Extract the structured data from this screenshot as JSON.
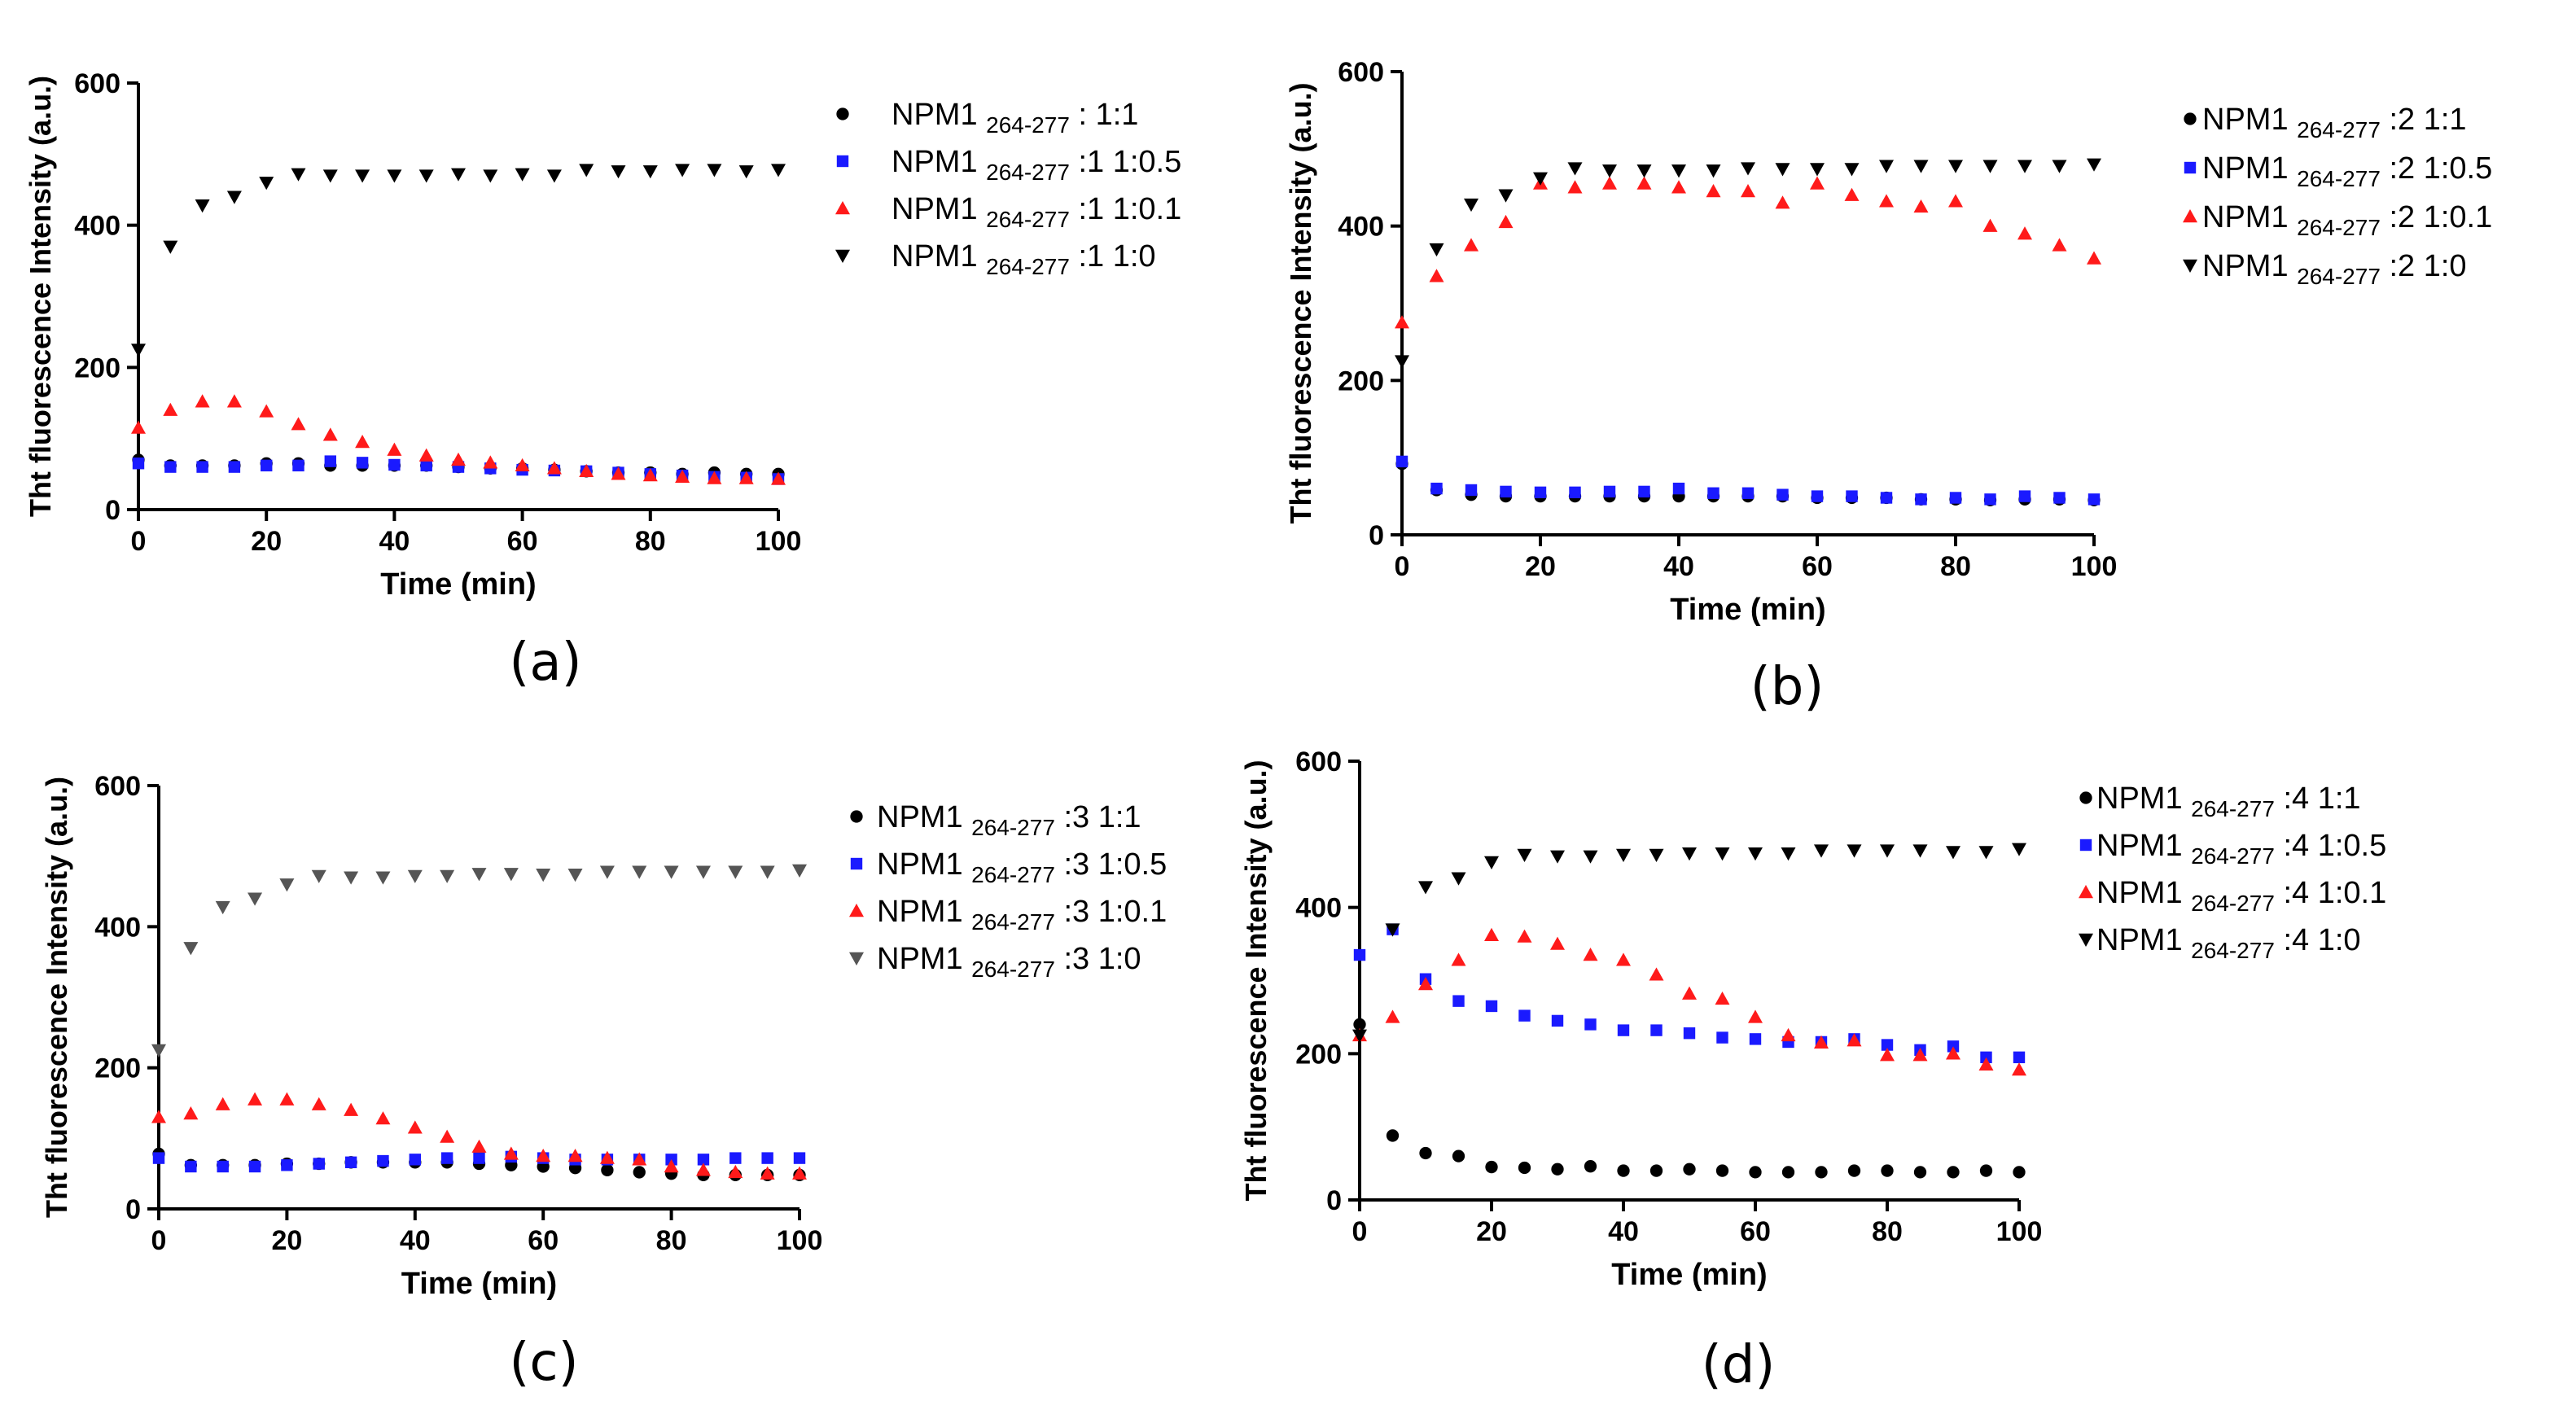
{
  "figure": {
    "colors": {
      "black": "#000000",
      "blue": "#1a1aff",
      "red": "#ff1a1a",
      "gray": "#555555"
    }
  },
  "chart_data": [
    {
      "type": "scatter",
      "panel_label": "(a)",
      "xlabel": "Time (min)",
      "ylabel": "Tht fluorescence Intensity (a.u.)",
      "xlim": [
        0,
        100
      ],
      "ylim": [
        0,
        600
      ],
      "xticks": [
        0,
        20,
        40,
        60,
        80,
        100
      ],
      "yticks": [
        0,
        200,
        400,
        600
      ],
      "x": [
        0,
        5,
        10,
        15,
        20,
        25,
        30,
        35,
        40,
        45,
        50,
        55,
        60,
        65,
        70,
        75,
        80,
        85,
        90,
        95,
        100
      ],
      "series": [
        {
          "name": "1:1",
          "legend": {
            "main": "NPM1",
            "sub": "264-277",
            "suffix": " : 1:1"
          },
          "marker": "circle",
          "color": "#000000",
          "values": [
            70,
            62,
            62,
            62,
            65,
            65,
            62,
            62,
            62,
            62,
            60,
            58,
            58,
            56,
            54,
            52,
            52,
            50,
            52,
            50,
            50
          ]
        },
        {
          "name": "1:0.5",
          "legend": {
            "main": "NPM1",
            "sub": "264-277",
            "suffix": " :1 1:0.5"
          },
          "marker": "square",
          "color": "#1a1aff",
          "values": [
            65,
            60,
            60,
            60,
            62,
            62,
            68,
            66,
            63,
            62,
            60,
            58,
            56,
            55,
            54,
            52,
            50,
            48,
            46,
            45,
            43
          ]
        },
        {
          "name": "1:0.1",
          "legend": {
            "main": "NPM1",
            "sub": "264-277",
            "suffix": " :1 1:0.1"
          },
          "marker": "triangle-up",
          "color": "#ff1a1a",
          "values": [
            115,
            140,
            152,
            152,
            138,
            120,
            105,
            95,
            84,
            76,
            70,
            66,
            62,
            58,
            54,
            50,
            48,
            46,
            44,
            44,
            43
          ]
        },
        {
          "name": "1:0",
          "legend": {
            "main": "NPM1",
            "sub": "264-277",
            "suffix": " :1 1:0"
          },
          "marker": "triangle-down",
          "color": "#000000",
          "values": [
            225,
            370,
            428,
            440,
            460,
            472,
            470,
            470,
            470,
            470,
            472,
            470,
            472,
            470,
            478,
            476,
            476,
            478,
            478,
            476,
            478
          ]
        }
      ]
    },
    {
      "type": "scatter",
      "panel_label": "(b)",
      "xlabel": "Time (min)",
      "ylabel": "Tht fluorescence Intensity (a.u.)",
      "xlim": [
        0,
        100
      ],
      "ylim": [
        0,
        600
      ],
      "xticks": [
        0,
        20,
        40,
        60,
        80,
        100
      ],
      "yticks": [
        0,
        200,
        400,
        600
      ],
      "x": [
        0,
        5,
        10,
        15,
        20,
        25,
        30,
        35,
        40,
        45,
        50,
        55,
        60,
        65,
        70,
        75,
        80,
        85,
        90,
        95,
        100
      ],
      "series": [
        {
          "name": "1:1",
          "legend": {
            "main": "NPM1",
            "sub": "264-277",
            "suffix": " :2 1:1"
          },
          "marker": "circle",
          "color": "#000000",
          "values": [
            92,
            58,
            52,
            50,
            50,
            50,
            50,
            50,
            50,
            50,
            50,
            50,
            48,
            48,
            48,
            46,
            46,
            45,
            46,
            46,
            45
          ]
        },
        {
          "name": "1:0.5",
          "legend": {
            "main": "NPM1",
            "sub": "264-277",
            "suffix": " :2 1:0.5"
          },
          "marker": "square",
          "color": "#1a1aff",
          "values": [
            95,
            60,
            58,
            56,
            55,
            55,
            56,
            56,
            60,
            54,
            54,
            52,
            50,
            50,
            48,
            46,
            48,
            46,
            50,
            48,
            46
          ]
        },
        {
          "name": "1:0.1",
          "legend": {
            "main": "NPM1",
            "sub": "264-277",
            "suffix": " :2 1:0.1"
          },
          "marker": "triangle-up",
          "color": "#ff1a1a",
          "values": [
            275,
            335,
            375,
            405,
            455,
            450,
            455,
            455,
            450,
            445,
            445,
            430,
            455,
            440,
            432,
            425,
            432,
            400,
            390,
            375,
            358
          ]
        },
        {
          "name": "1:0",
          "legend": {
            "main": "NPM1",
            "sub": "264-277",
            "suffix": " :2 1:0"
          },
          "marker": "triangle-down",
          "color": "#000000",
          "values": [
            225,
            370,
            428,
            440,
            462,
            475,
            472,
            472,
            472,
            472,
            475,
            474,
            474,
            474,
            478,
            478,
            478,
            478,
            478,
            478,
            480
          ]
        }
      ]
    },
    {
      "type": "scatter",
      "panel_label": "(c)",
      "xlabel": "Time (min)",
      "ylabel": "Tht fluorescence Intensity (a.u.)",
      "xlim": [
        0,
        100
      ],
      "ylim": [
        0,
        600
      ],
      "xticks": [
        0,
        20,
        40,
        60,
        80,
        100
      ],
      "yticks": [
        0,
        200,
        400,
        600
      ],
      "x": [
        0,
        5,
        10,
        15,
        20,
        25,
        30,
        35,
        40,
        45,
        50,
        55,
        60,
        65,
        70,
        75,
        80,
        85,
        90,
        95,
        100
      ],
      "series": [
        {
          "name": "1:1",
          "legend": {
            "main": "NPM1",
            "sub": "264-277",
            "suffix": " :3 1:1"
          },
          "marker": "circle",
          "color": "#000000",
          "values": [
            78,
            62,
            62,
            62,
            64,
            64,
            66,
            66,
            66,
            66,
            64,
            62,
            60,
            58,
            55,
            52,
            50,
            48,
            48,
            48,
            48
          ]
        },
        {
          "name": "1:0.5",
          "legend": {
            "main": "NPM1",
            "sub": "264-277",
            "suffix": " :3 1:0.5"
          },
          "marker": "square",
          "color": "#1a1aff",
          "values": [
            72,
            60,
            60,
            60,
            62,
            64,
            66,
            68,
            70,
            72,
            72,
            74,
            72,
            70,
            70,
            70,
            70,
            70,
            72,
            72,
            72
          ]
        },
        {
          "name": "1:0.1",
          "legend": {
            "main": "NPM1",
            "sub": "264-277",
            "suffix": " :3 1:0.1"
          },
          "marker": "triangle-up",
          "color": "#ff1a1a",
          "values": [
            130,
            135,
            148,
            155,
            155,
            148,
            140,
            128,
            115,
            102,
            88,
            78,
            75,
            75,
            72,
            70,
            60,
            55,
            52,
            50,
            50
          ]
        },
        {
          "name": "1:0",
          "legend": {
            "main": "NPM1",
            "sub": "264-277",
            "suffix": " :3 1:0"
          },
          "marker": "triangle-down",
          "color": "#555555",
          "values": [
            225,
            370,
            428,
            440,
            460,
            472,
            470,
            470,
            472,
            472,
            475,
            475,
            474,
            474,
            478,
            478,
            478,
            478,
            478,
            478,
            480
          ]
        }
      ]
    },
    {
      "type": "scatter",
      "panel_label": "(d)",
      "xlabel": "Time (min)",
      "ylabel": "Tht fluorescence Intensity (a.u.)",
      "xlim": [
        0,
        100
      ],
      "ylim": [
        0,
        600
      ],
      "xticks": [
        0,
        20,
        40,
        60,
        80,
        100
      ],
      "yticks": [
        0,
        200,
        400,
        600
      ],
      "x": [
        0,
        5,
        10,
        15,
        20,
        25,
        30,
        35,
        40,
        45,
        50,
        55,
        60,
        65,
        70,
        75,
        80,
        85,
        90,
        95,
        100
      ],
      "series": [
        {
          "name": "1:1",
          "legend": {
            "main": "NPM1",
            "sub": "264-277",
            "suffix": " :4 1:1"
          },
          "marker": "circle",
          "color": "#000000",
          "values": [
            240,
            88,
            64,
            60,
            45,
            44,
            42,
            46,
            40,
            40,
            42,
            40,
            38,
            38,
            38,
            40,
            40,
            38,
            38,
            40,
            38
          ]
        },
        {
          "name": "1:0.5",
          "legend": {
            "main": "NPM1",
            "sub": "264-277",
            "suffix": " :4 1:0.5"
          },
          "marker": "square",
          "color": "#1a1aff",
          "values": [
            335,
            370,
            302,
            272,
            265,
            252,
            245,
            240,
            232,
            232,
            228,
            222,
            220,
            216,
            216,
            220,
            212,
            205,
            210,
            195,
            195
          ]
        },
        {
          "name": "1:0.1",
          "legend": {
            "main": "NPM1",
            "sub": "264-277",
            "suffix": " :4 1:0.1"
          },
          "marker": "triangle-up",
          "color": "#ff1a1a",
          "values": [
            225,
            250,
            295,
            328,
            362,
            360,
            350,
            335,
            328,
            308,
            282,
            275,
            250,
            225,
            215,
            218,
            198,
            198,
            200,
            185,
            178
          ]
        },
        {
          "name": "1:0",
          "legend": {
            "main": "NPM1",
            "sub": "264-277",
            "suffix": " :4 1:0"
          },
          "marker": "triangle-down",
          "color": "#000000",
          "values": [
            225,
            370,
            428,
            440,
            462,
            472,
            470,
            470,
            472,
            472,
            474,
            474,
            474,
            474,
            478,
            478,
            478,
            478,
            476,
            476,
            480
          ]
        }
      ]
    }
  ]
}
